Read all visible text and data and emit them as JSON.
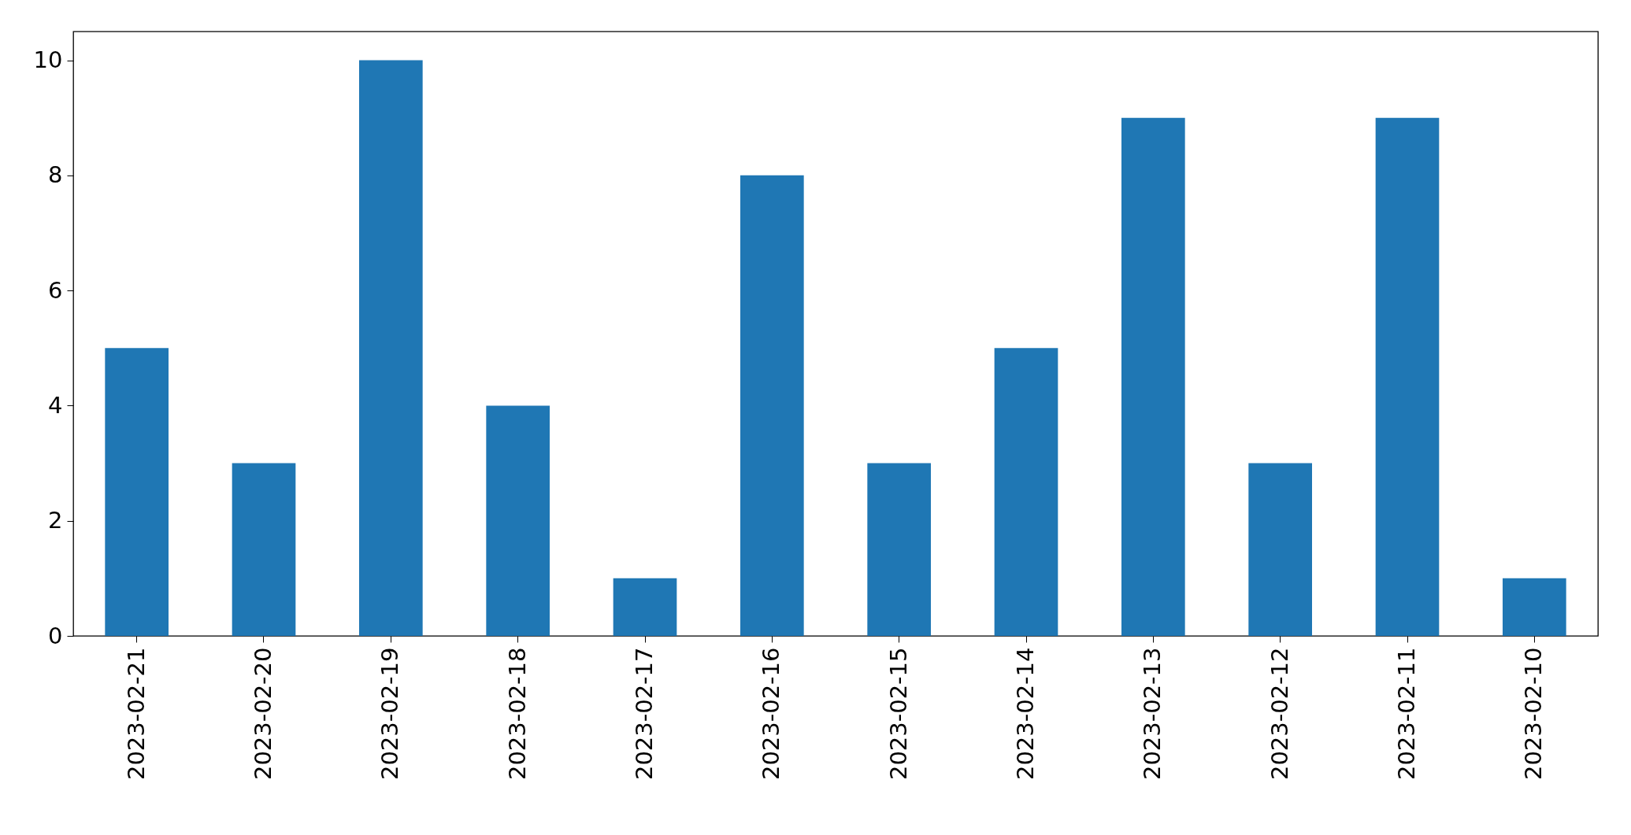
{
  "chart_data": {
    "type": "bar",
    "categories": [
      "2023-02-21",
      "2023-02-20",
      "2023-02-19",
      "2023-02-18",
      "2023-02-17",
      "2023-02-16",
      "2023-02-15",
      "2023-02-14",
      "2023-02-13",
      "2023-02-12",
      "2023-02-11",
      "2023-02-10"
    ],
    "values": [
      5,
      3,
      10,
      4,
      1,
      8,
      3,
      5,
      9,
      3,
      9,
      1
    ],
    "color": "#1f77b4",
    "ylim": [
      0,
      10.5
    ],
    "yticks": [
      0,
      2,
      4,
      6,
      8,
      10
    ]
  }
}
